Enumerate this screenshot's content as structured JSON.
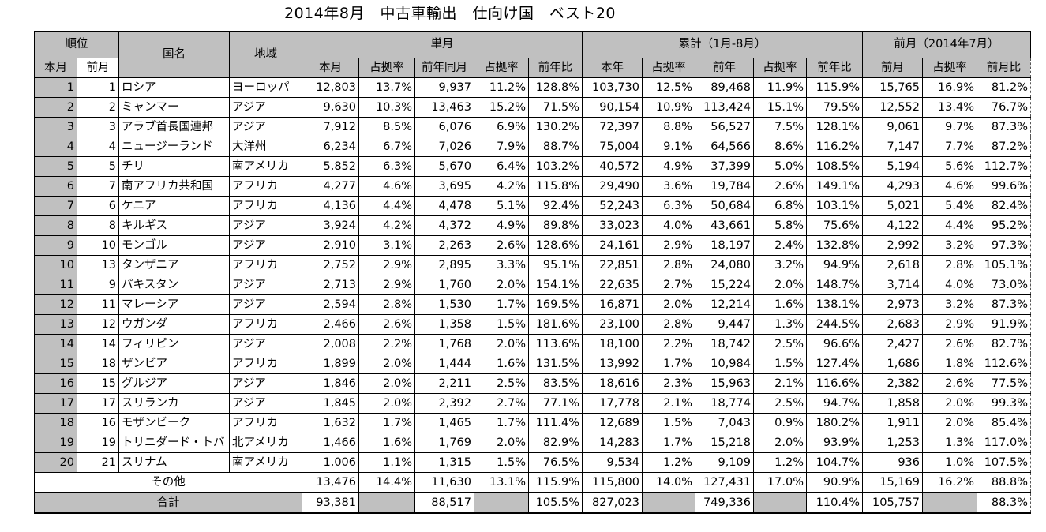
{
  "title": "2014年8月　中古車輸出　仕向け国　ベスト20",
  "headers": {
    "rank": "順位",
    "country": "国名",
    "region": "地域",
    "single_month": "単月",
    "cumulative": "累計（1月-8月）",
    "prev_month": "前月（2014年7月）",
    "rank_this": "本月",
    "rank_prev": "前月",
    "cols": [
      "本月",
      "占拠率",
      "前年同月",
      "占拠率",
      "前年比",
      "本年",
      "占拠率",
      "前年",
      "占拠率",
      "前年比",
      "前月",
      "占拠率",
      "前月比"
    ]
  },
  "rows": [
    [
      "1",
      "1",
      "ロシア",
      "ヨーロッパ",
      "12,803",
      "13.7%",
      "9,937",
      "11.2%",
      "128.8%",
      "103,730",
      "12.5%",
      "89,468",
      "11.9%",
      "115.9%",
      "15,765",
      "16.9%",
      "81.2%"
    ],
    [
      "2",
      "2",
      "ミャンマー",
      "アジア",
      "9,630",
      "10.3%",
      "13,463",
      "15.2%",
      "71.5%",
      "90,154",
      "10.9%",
      "113,424",
      "15.1%",
      "79.5%",
      "12,552",
      "13.4%",
      "76.7%"
    ],
    [
      "3",
      "3",
      "アラブ首長国連邦",
      "アジア",
      "7,912",
      "8.5%",
      "6,076",
      "6.9%",
      "130.2%",
      "72,397",
      "8.8%",
      "56,527",
      "7.5%",
      "128.1%",
      "9,061",
      "9.7%",
      "87.3%"
    ],
    [
      "4",
      "4",
      "ニュージーランド",
      "大洋州",
      "6,234",
      "6.7%",
      "7,026",
      "7.9%",
      "88.7%",
      "75,004",
      "9.1%",
      "64,566",
      "8.6%",
      "116.2%",
      "7,147",
      "7.7%",
      "87.2%"
    ],
    [
      "5",
      "5",
      "チリ",
      "南アメリカ",
      "5,852",
      "6.3%",
      "5,670",
      "6.4%",
      "103.2%",
      "40,572",
      "4.9%",
      "37,399",
      "5.0%",
      "108.5%",
      "5,194",
      "5.6%",
      "112.7%"
    ],
    [
      "6",
      "7",
      "南アフリカ共和国",
      "アフリカ",
      "4,277",
      "4.6%",
      "3,695",
      "4.2%",
      "115.8%",
      "29,490",
      "3.6%",
      "19,784",
      "2.6%",
      "149.1%",
      "4,293",
      "4.6%",
      "99.6%"
    ],
    [
      "7",
      "6",
      "ケニア",
      "アフリカ",
      "4,136",
      "4.4%",
      "4,478",
      "5.1%",
      "92.4%",
      "52,243",
      "6.3%",
      "50,684",
      "6.8%",
      "103.1%",
      "5,021",
      "5.4%",
      "82.4%"
    ],
    [
      "8",
      "8",
      "キルギス",
      "アジア",
      "3,924",
      "4.2%",
      "4,372",
      "4.9%",
      "89.8%",
      "33,023",
      "4.0%",
      "43,661",
      "5.8%",
      "75.6%",
      "4,122",
      "4.4%",
      "95.2%"
    ],
    [
      "9",
      "10",
      "モンゴル",
      "アジア",
      "2,910",
      "3.1%",
      "2,263",
      "2.6%",
      "128.6%",
      "24,161",
      "2.9%",
      "18,197",
      "2.4%",
      "132.8%",
      "2,992",
      "3.2%",
      "97.3%"
    ],
    [
      "10",
      "13",
      "タンザニア",
      "アフリカ",
      "2,752",
      "2.9%",
      "2,895",
      "3.3%",
      "95.1%",
      "22,851",
      "2.8%",
      "24,080",
      "3.2%",
      "94.9%",
      "2,618",
      "2.8%",
      "105.1%"
    ],
    [
      "11",
      "9",
      "パキスタン",
      "アジア",
      "2,713",
      "2.9%",
      "1,760",
      "2.0%",
      "154.1%",
      "22,635",
      "2.7%",
      "15,224",
      "2.0%",
      "148.7%",
      "3,714",
      "4.0%",
      "73.0%"
    ],
    [
      "12",
      "11",
      "マレーシア",
      "アジア",
      "2,594",
      "2.8%",
      "1,530",
      "1.7%",
      "169.5%",
      "16,871",
      "2.0%",
      "12,214",
      "1.6%",
      "138.1%",
      "2,973",
      "3.2%",
      "87.3%"
    ],
    [
      "13",
      "12",
      "ウガンダ",
      "アフリカ",
      "2,466",
      "2.6%",
      "1,358",
      "1.5%",
      "181.6%",
      "23,100",
      "2.8%",
      "9,447",
      "1.3%",
      "244.5%",
      "2,683",
      "2.9%",
      "91.9%"
    ],
    [
      "14",
      "14",
      "フィリピン",
      "アジア",
      "2,008",
      "2.2%",
      "1,768",
      "2.0%",
      "113.6%",
      "18,100",
      "2.2%",
      "18,742",
      "2.5%",
      "96.6%",
      "2,427",
      "2.6%",
      "82.7%"
    ],
    [
      "15",
      "18",
      "ザンビア",
      "アフリカ",
      "1,899",
      "2.0%",
      "1,444",
      "1.6%",
      "131.5%",
      "13,992",
      "1.7%",
      "10,984",
      "1.5%",
      "127.4%",
      "1,686",
      "1.8%",
      "112.6%"
    ],
    [
      "16",
      "15",
      "グルジア",
      "アジア",
      "1,846",
      "2.0%",
      "2,211",
      "2.5%",
      "83.5%",
      "18,616",
      "2.3%",
      "15,963",
      "2.1%",
      "116.6%",
      "2,382",
      "2.6%",
      "77.5%"
    ],
    [
      "17",
      "17",
      "スリランカ",
      "アジア",
      "1,845",
      "2.0%",
      "2,392",
      "2.7%",
      "77.1%",
      "17,778",
      "2.1%",
      "18,774",
      "2.5%",
      "94.7%",
      "1,858",
      "2.0%",
      "99.3%"
    ],
    [
      "18",
      "16",
      "モザンビーク",
      "アフリカ",
      "1,632",
      "1.7%",
      "1,465",
      "1.7%",
      "111.4%",
      "12,689",
      "1.5%",
      "7,043",
      "0.9%",
      "180.2%",
      "1,911",
      "2.0%",
      "85.4%"
    ],
    [
      "19",
      "19",
      "トリニダード・トバ",
      "北アメリカ",
      "1,466",
      "1.6%",
      "1,769",
      "2.0%",
      "82.9%",
      "14,283",
      "1.7%",
      "15,218",
      "2.0%",
      "93.9%",
      "1,253",
      "1.3%",
      "117.0%"
    ],
    [
      "20",
      "21",
      "スリナム",
      "南アメリカ",
      "1,006",
      "1.1%",
      "1,315",
      "1.5%",
      "76.5%",
      "9,534",
      "1.2%",
      "9,109",
      "1.2%",
      "104.7%",
      "936",
      "1.0%",
      "107.5%"
    ]
  ],
  "other": {
    "label": "その他",
    "values": [
      "13,476",
      "14.4%",
      "11,630",
      "13.1%",
      "115.9%",
      "115,800",
      "14.0%",
      "127,431",
      "17.0%",
      "90.9%",
      "15,169",
      "16.2%",
      "88.8%"
    ]
  },
  "total": {
    "label": "合計",
    "values": [
      "93,381",
      "",
      "88,517",
      "",
      "105.5%",
      "827,023",
      "",
      "749,336",
      "",
      "110.4%",
      "105,757",
      "",
      "88.3%"
    ]
  },
  "colors": {
    "header_fill": "#c0c0c0",
    "grid_line": "#000000"
  }
}
